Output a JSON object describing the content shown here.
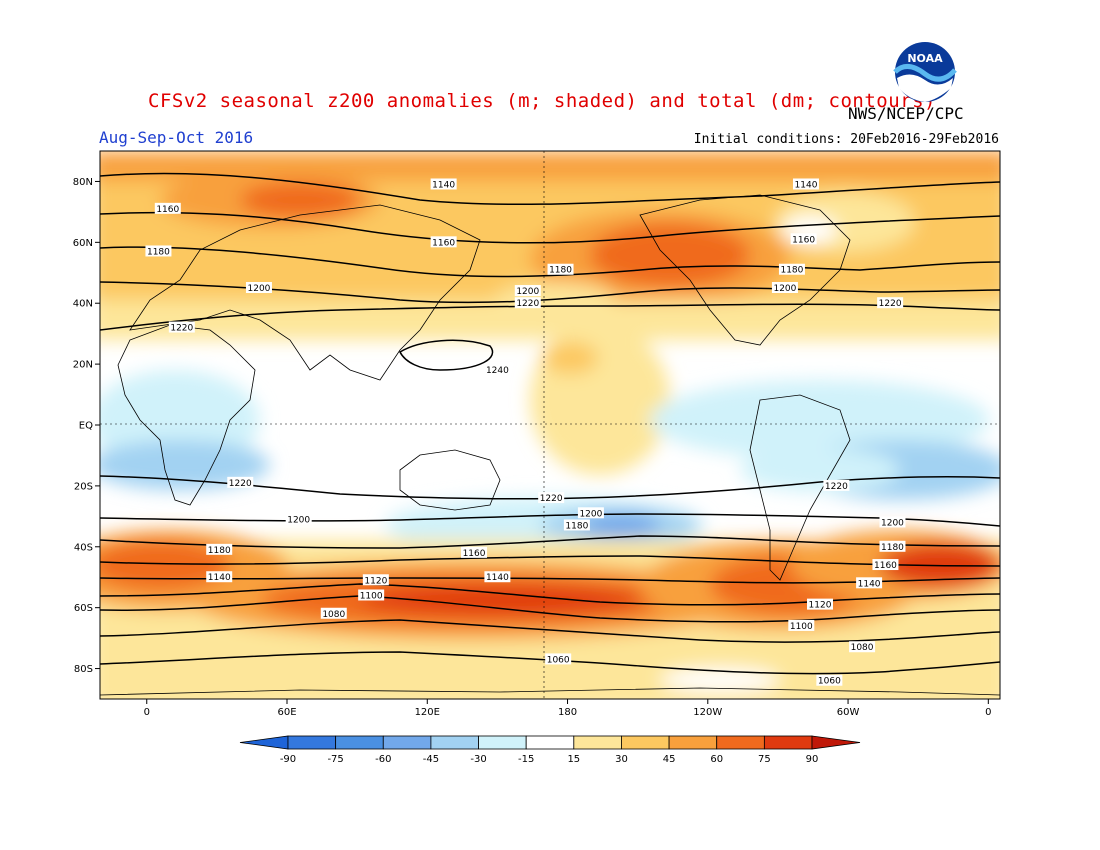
{
  "header": {
    "title": "CFSv2 seasonal z200 anomalies (m; shaded) and total (dm; contours)",
    "period": "Aug-Sep-Oct 2016",
    "agency": "NWS/NCEP/CPC",
    "initial_conditions": "Initial conditions: 20Feb2016-29Feb2016",
    "logo_text": "NOAA"
  },
  "map": {
    "projection": "cylindrical equidistant",
    "lon_range": [
      -20,
      365
    ],
    "lat_range": [
      -90,
      90
    ],
    "lat_ticks": [
      {
        "lat": 80,
        "label": "80N"
      },
      {
        "lat": 60,
        "label": "60N"
      },
      {
        "lat": 40,
        "label": "40N"
      },
      {
        "lat": 20,
        "label": "20N"
      },
      {
        "lat": 0,
        "label": "EQ"
      },
      {
        "lat": -20,
        "label": "20S"
      },
      {
        "lat": -40,
        "label": "40S"
      },
      {
        "lat": -60,
        "label": "60S"
      },
      {
        "lat": -80,
        "label": "80S"
      }
    ],
    "lon_ticks": [
      {
        "lon": 0,
        "label": "0"
      },
      {
        "lon": 60,
        "label": "60E"
      },
      {
        "lon": 120,
        "label": "120E"
      },
      {
        "lon": 180,
        "label": "180"
      },
      {
        "lon": 240,
        "label": "120W"
      },
      {
        "lon": 300,
        "label": "60W"
      },
      {
        "lon": 360,
        "label": "0"
      }
    ],
    "contours_dm": [
      {
        "value": 1140,
        "label_positions": [
          [
            127,
            79
          ],
          [
            282,
            79
          ]
        ]
      },
      {
        "value": 1160,
        "label_positions": [
          [
            9,
            71
          ],
          [
            127,
            60
          ],
          [
            281,
            61
          ]
        ]
      },
      {
        "value": 1180,
        "label_positions": [
          [
            5,
            57
          ],
          [
            177,
            51
          ],
          [
            276,
            51
          ]
        ]
      },
      {
        "value": 1200,
        "label_positions": [
          [
            48,
            45
          ],
          [
            163,
            44
          ],
          [
            273,
            45
          ]
        ]
      },
      {
        "value": 1220,
        "label_positions": [
          [
            15,
            32
          ],
          [
            163,
            40
          ],
          [
            318,
            40
          ]
        ]
      },
      {
        "value": 1240,
        "label_positions": [
          [
            150,
            18
          ]
        ]
      },
      {
        "value": 1220,
        "label_positions": [
          [
            40,
            -19
          ],
          [
            173,
            -24
          ],
          [
            295,
            -20
          ]
        ]
      },
      {
        "value": 1200,
        "label_positions": [
          [
            65,
            -31
          ],
          [
            190,
            -29
          ],
          [
            319,
            -32
          ]
        ]
      },
      {
        "value": 1180,
        "label_positions": [
          [
            31,
            -41
          ],
          [
            184,
            -33
          ],
          [
            319,
            -40
          ]
        ]
      },
      {
        "value": 1160,
        "label_positions": [
          [
            140,
            -42
          ],
          [
            316,
            -46
          ]
        ]
      },
      {
        "value": 1140,
        "label_positions": [
          [
            31,
            -50
          ],
          [
            150,
            -50
          ],
          [
            309,
            -52
          ]
        ]
      },
      {
        "value": 1120,
        "label_positions": [
          [
            98,
            -51
          ],
          [
            288,
            -59
          ]
        ]
      },
      {
        "value": 1100,
        "label_positions": [
          [
            96,
            -56
          ],
          [
            280,
            -66
          ]
        ]
      },
      {
        "value": 1080,
        "label_positions": [
          [
            80,
            -62
          ],
          [
            306,
            -73
          ]
        ]
      },
      {
        "value": 1060,
        "label_positions": [
          [
            176,
            -77
          ],
          [
            292,
            -84
          ]
        ]
      }
    ]
  },
  "colorbar": {
    "labels": [
      "-90",
      "-75",
      "-60",
      "-45",
      "-30",
      "-15",
      "15",
      "30",
      "45",
      "60",
      "75",
      "90"
    ],
    "colors": [
      "#1e64d8",
      "#3478de",
      "#4a90e2",
      "#72a8ea",
      "#a2d2f2",
      "#d0f2fa",
      "#ffffff",
      "#fde69a",
      "#fcc860",
      "#f8a03c",
      "#f06a1e",
      "#e03a10",
      "#c01808"
    ]
  }
}
